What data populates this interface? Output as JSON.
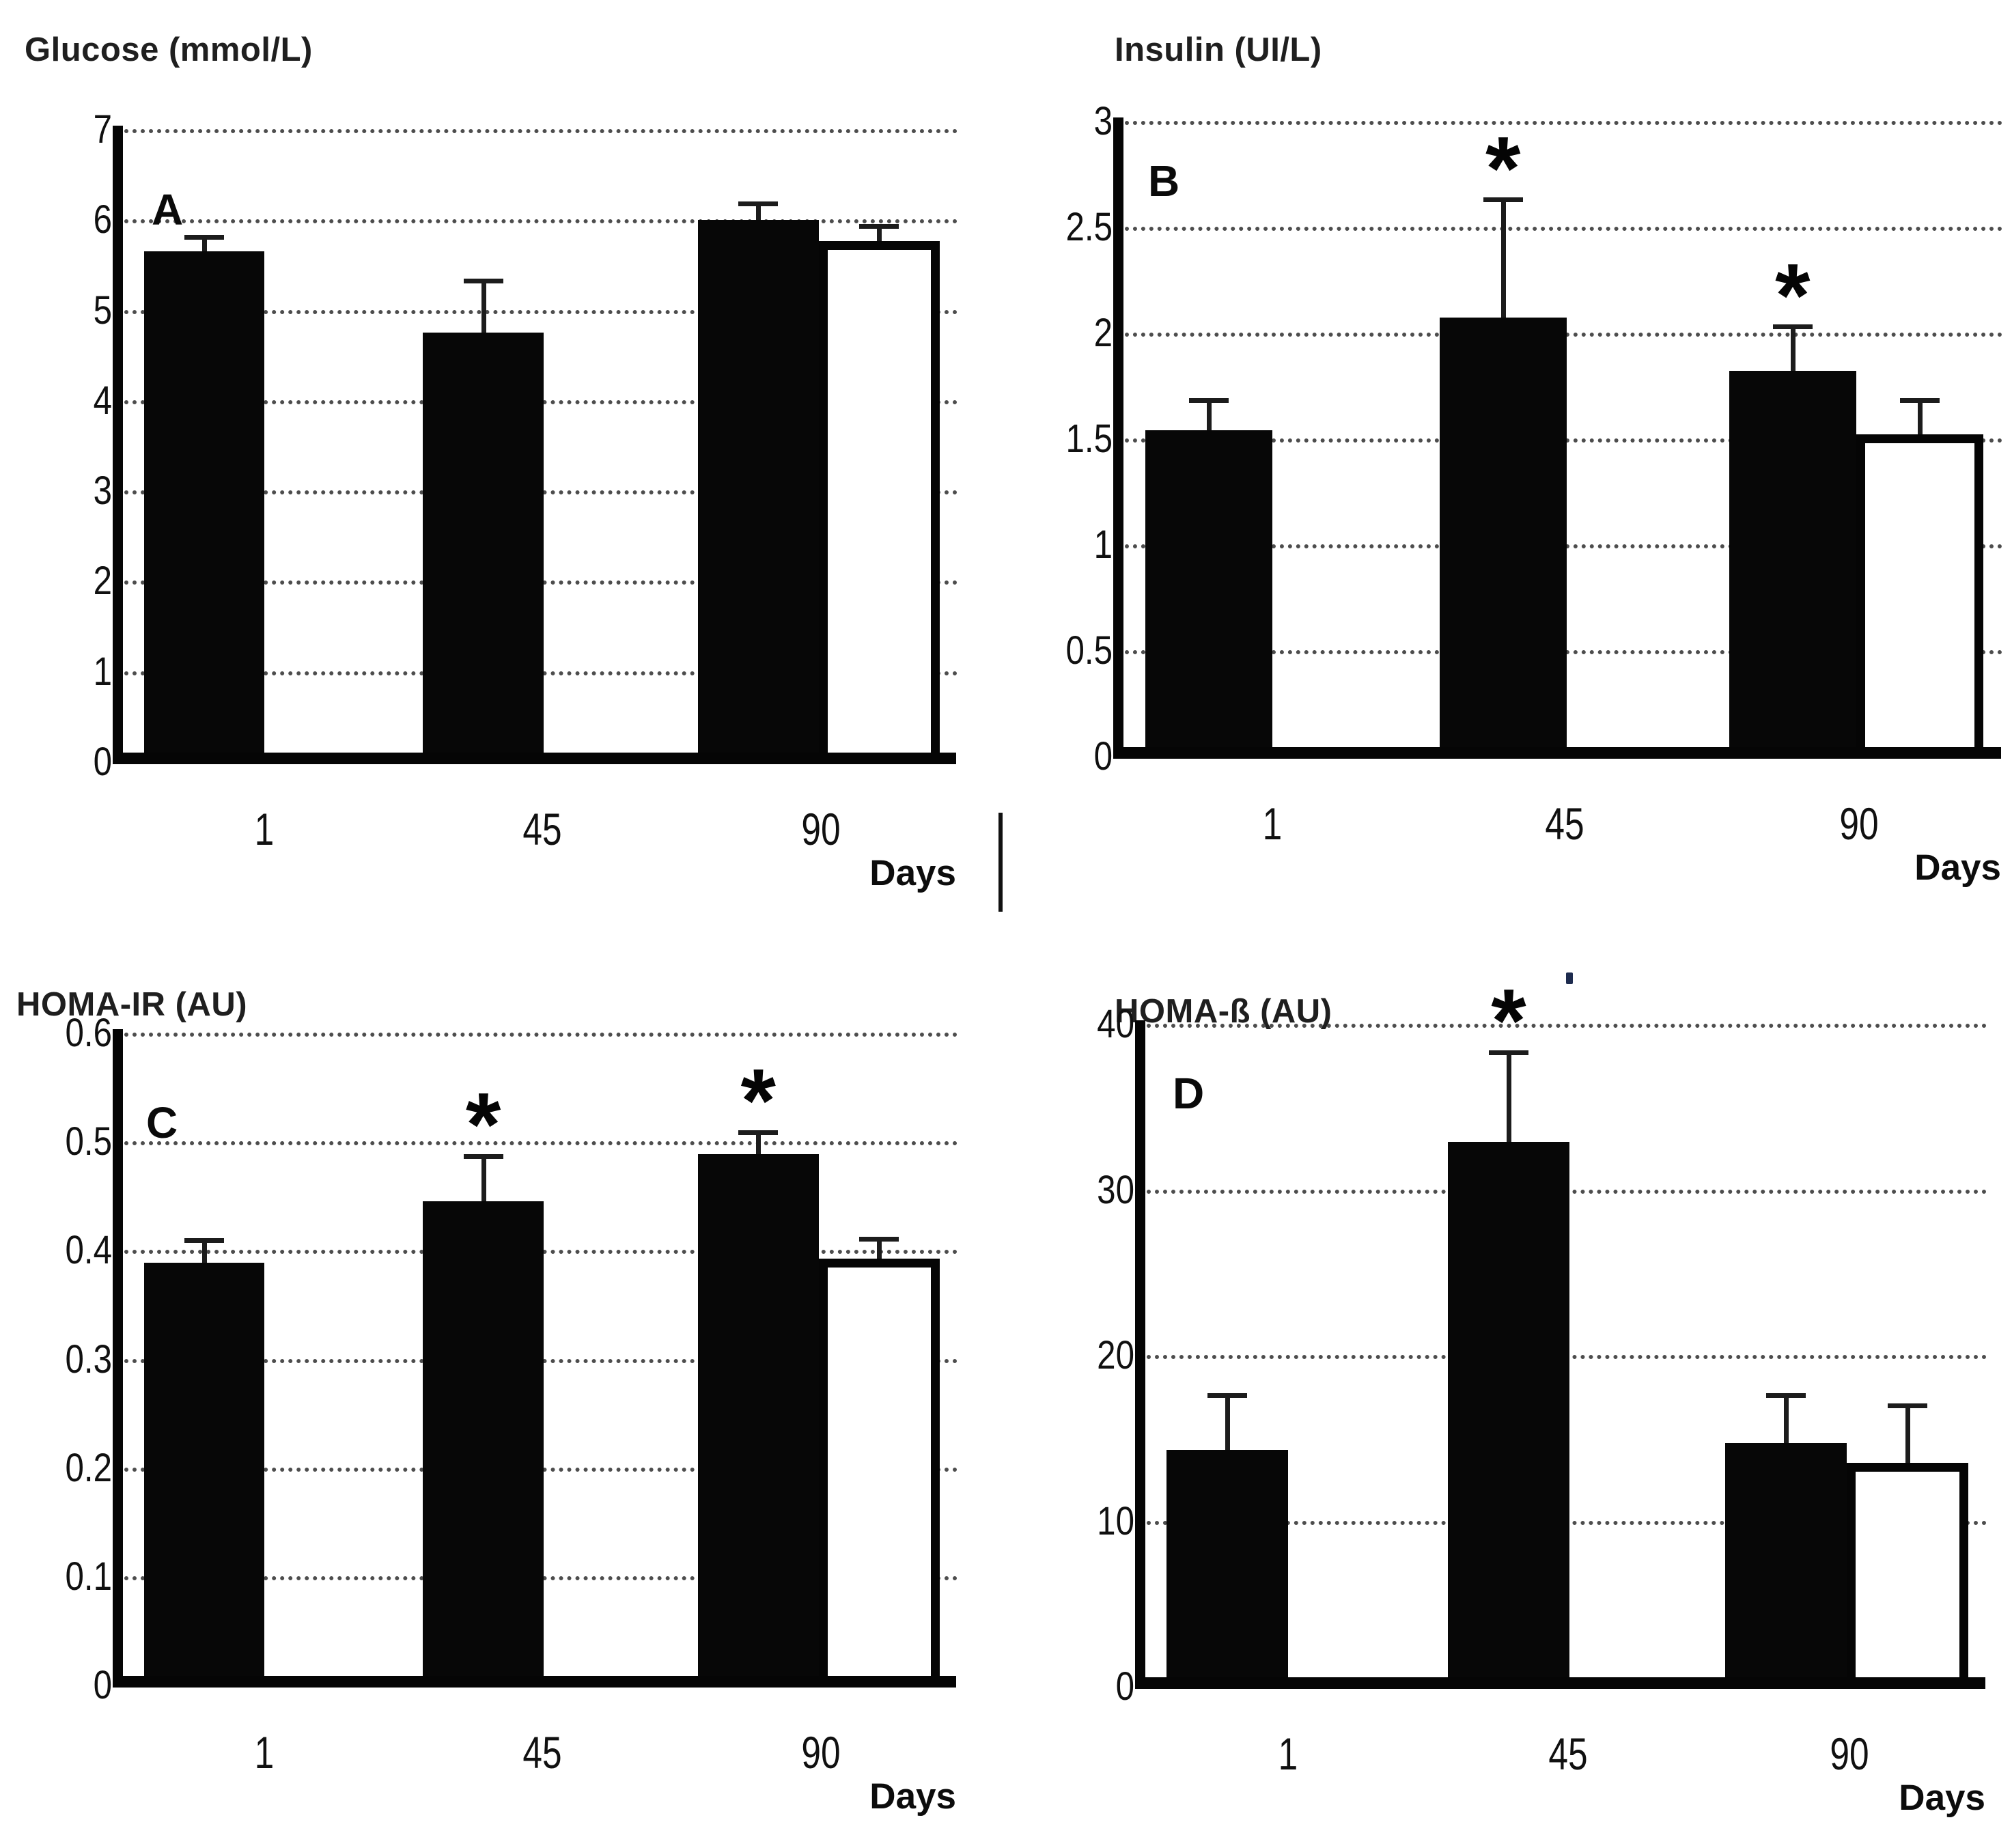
{
  "x_axis_label": "Days",
  "divider": {
    "present": true,
    "description": "short vertical line between panel A and panel B near Days label"
  },
  "chart_data": [
    {
      "type": "bar",
      "panel_letter": "A",
      "title": "Glucose (mmol/L)",
      "categories": [
        "1",
        "45",
        "90"
      ],
      "xlabel": "Days",
      "ylim": [
        0,
        7
      ],
      "y_ticks": [
        "7",
        "6",
        "5",
        "4",
        "3",
        "2",
        "1",
        "0"
      ],
      "grid": "dotted-horizontal",
      "legend": "none",
      "series": [
        {
          "name": "filled-black-bar",
          "values": [
            5.67,
            4.77,
            6.02
          ],
          "errors_plus": [
            0.18,
            0.6,
            0.2
          ],
          "stars": [
            false,
            false,
            false
          ]
        },
        {
          "name": "open-white-bar",
          "values": [
            null,
            null,
            5.78
          ],
          "errors_plus": [
            null,
            null,
            0.19
          ],
          "stars": [
            false,
            false,
            false
          ]
        }
      ],
      "annotations": []
    },
    {
      "type": "bar",
      "panel_letter": "B",
      "title": "Insulin (UI/L)",
      "categories": [
        "1",
        "45",
        "90"
      ],
      "xlabel": "Days",
      "ylim": [
        0,
        3
      ],
      "y_ticks": [
        "3",
        "2.5",
        "2",
        "1.5",
        "1",
        "0.5",
        "0"
      ],
      "grid": "dotted-horizontal",
      "legend": "none",
      "series": [
        {
          "name": "filled-black-bar",
          "values": [
            1.55,
            2.08,
            1.83
          ],
          "errors_plus": [
            0.15,
            0.57,
            0.22
          ],
          "stars": [
            false,
            true,
            true
          ]
        },
        {
          "name": "open-white-bar",
          "values": [
            null,
            null,
            1.53
          ],
          "errors_plus": [
            null,
            null,
            0.17
          ],
          "stars": [
            false,
            false,
            false
          ]
        }
      ],
      "annotations": []
    },
    {
      "type": "bar",
      "panel_letter": "C",
      "title": "HOMA-IR (AU)",
      "categories": [
        "1",
        "45",
        "90"
      ],
      "xlabel": "Days",
      "ylim": [
        0,
        0.6
      ],
      "y_ticks": [
        "0.6",
        "0.5",
        "0.4",
        "0.3",
        "0.2",
        "0.1",
        "0"
      ],
      "grid": "dotted-horizontal",
      "legend": "none",
      "series": [
        {
          "name": "filled-black-bar",
          "values": [
            0.39,
            0.447,
            0.49
          ],
          "errors_plus": [
            0.023,
            0.043,
            0.022
          ],
          "stars": [
            false,
            true,
            true
          ]
        },
        {
          "name": "open-white-bar",
          "values": [
            null,
            null,
            0.394
          ],
          "errors_plus": [
            null,
            null,
            0.02
          ],
          "stars": [
            false,
            false,
            false
          ]
        }
      ],
      "annotations": []
    },
    {
      "type": "bar",
      "panel_letter": "D",
      "title": "HOMA-ß (AU)",
      "categories": [
        "1",
        "45",
        "90"
      ],
      "xlabel": "Days",
      "ylim": [
        0,
        40
      ],
      "y_ticks": [
        "40",
        "30",
        "20",
        "10",
        "0"
      ],
      "grid": "dotted-horizontal",
      "legend": "none",
      "series": [
        {
          "name": "filled-black-bar",
          "values": [
            14.4,
            33.0,
            14.8
          ],
          "errors_plus": [
            3.4,
            5.5,
            3.0
          ],
          "stars": [
            false,
            true,
            false
          ]
        },
        {
          "name": "open-white-bar",
          "values": [
            null,
            null,
            13.6
          ],
          "errors_plus": [
            null,
            null,
            3.6
          ],
          "stars": [
            false,
            false,
            false
          ]
        }
      ],
      "annotations": [
        {
          "type": "small-dot",
          "x_frac": 0.505,
          "y_value": 42.5
        }
      ]
    }
  ]
}
